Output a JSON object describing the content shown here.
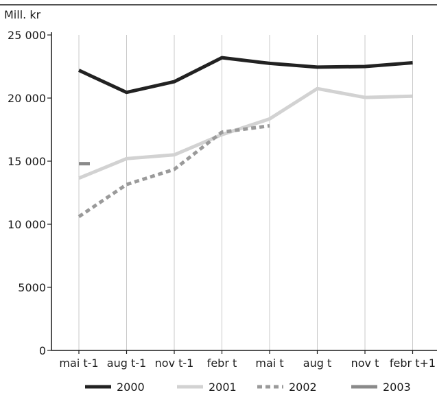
{
  "chart_data": {
    "type": "line",
    "unit_label": "Mill. kr",
    "categories": [
      "mai t-1",
      "aug t-1",
      "nov t-1",
      "febr t",
      "mai t",
      "aug t",
      "nov t",
      "febr t+1"
    ],
    "yticks": [
      "0",
      "5000",
      "10 000",
      "15 000",
      "20 000",
      "25 000"
    ],
    "ylim": [
      0,
      25000
    ],
    "grid": "vertical",
    "legend_position": "bottom",
    "series": [
      {
        "name": "2000",
        "color": "#222222",
        "style": "solid",
        "values": [
          22200,
          20450,
          21300,
          23200,
          22750,
          22450,
          22500,
          22800
        ]
      },
      {
        "name": "2001",
        "color": "#d2d2d2",
        "style": "solid",
        "values": [
          13650,
          15200,
          15500,
          17100,
          18350,
          20750,
          20050,
          20150
        ]
      },
      {
        "name": "2002",
        "color": "#9a9a9a",
        "style": "dashed",
        "values": [
          10600,
          13150,
          14350,
          17300,
          17800,
          null,
          null,
          null
        ]
      },
      {
        "name": "2003",
        "color": "#8a8a8a",
        "style": "solid",
        "values": [
          14800,
          null,
          null,
          null,
          null,
          null,
          null,
          null
        ]
      }
    ]
  }
}
